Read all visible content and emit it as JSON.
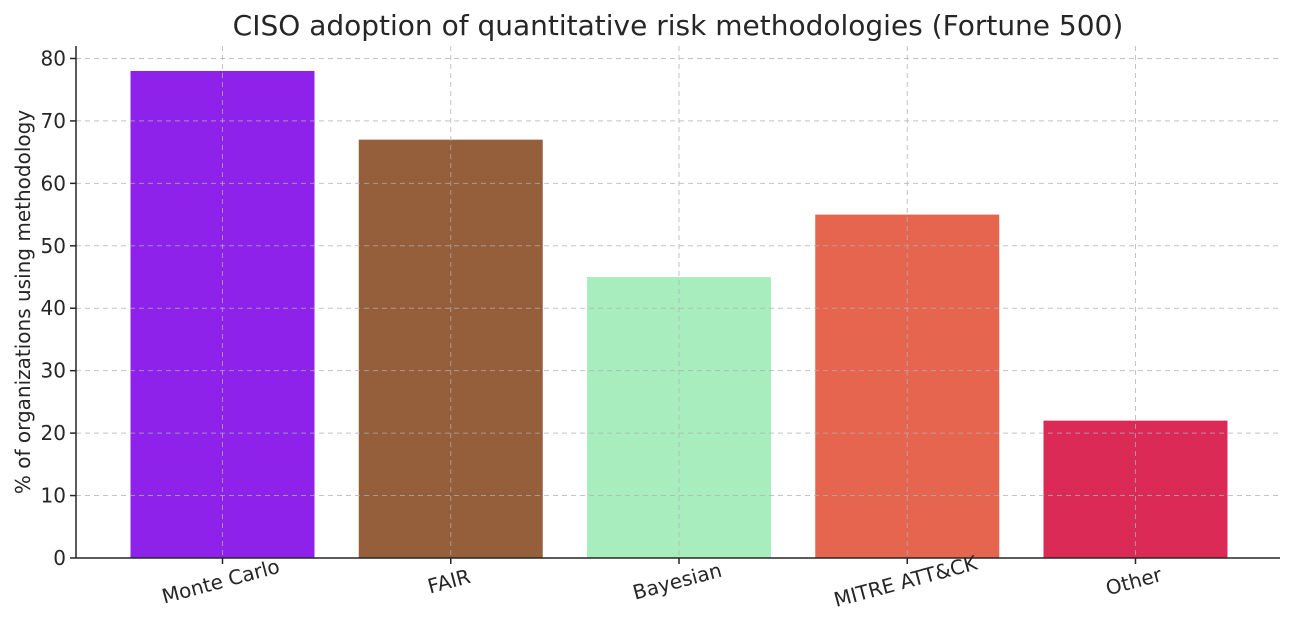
{
  "chart_data": {
    "type": "bar",
    "title": "CISO adoption of quantitative risk methodologies (Fortune 500)",
    "xlabel": "",
    "ylabel": "% of organizations using methodology",
    "categories": [
      "Monte Carlo",
      "FAIR",
      "Bayesian",
      "MITRE ATT&CK",
      "Other"
    ],
    "values": [
      78,
      67,
      45,
      55,
      22
    ],
    "colors": [
      "#8e22ea",
      "#955f3b",
      "#a8edbd",
      "#e5654f",
      "#da2a55"
    ],
    "ylim": [
      0,
      82
    ],
    "yticks": [
      0,
      10,
      20,
      30,
      40,
      50,
      60,
      70,
      80
    ],
    "grid": true,
    "legend": "none",
    "xtick_rotation_deg": -15
  }
}
